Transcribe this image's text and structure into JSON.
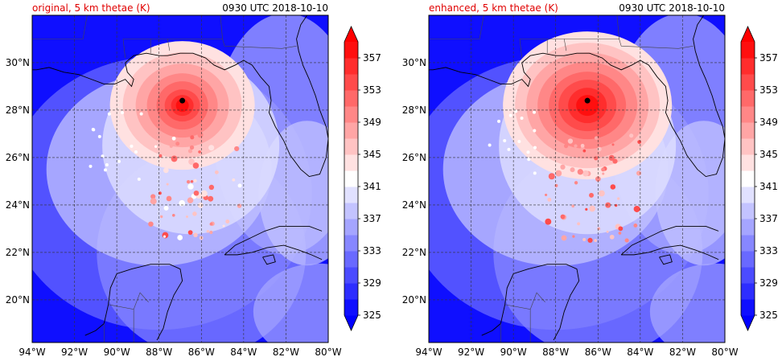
{
  "panels": [
    {
      "id": "original",
      "title_left": "original, 5 km thetae (K)",
      "title_right": "0930 UTC 2018-10-10",
      "storm_center": {
        "lon": -86.9,
        "lat": 28.4
      },
      "enhanced": false
    },
    {
      "id": "enhanced",
      "title_left": "enhanced, 5 km thetae (K)",
      "title_right": "0930 UTC 2018-10-10",
      "storm_center": {
        "lon": -86.5,
        "lat": 28.4
      },
      "enhanced": true
    }
  ],
  "map": {
    "lon_range": [
      -94,
      -80
    ],
    "lat_range": [
      18.2,
      32.0
    ],
    "lon_ticks": [
      -94,
      -92,
      -90,
      -88,
      -86,
      -84,
      -82,
      -80
    ],
    "lon_labels": [
      "94°W",
      "92°W",
      "90°W",
      "88°W",
      "86°W",
      "84°W",
      "82°W",
      "80°W"
    ],
    "lat_ticks": [
      20,
      22,
      24,
      26,
      28,
      30
    ],
    "lat_labels": [
      "20°N",
      "22°N",
      "24°N",
      "26°N",
      "28°N",
      "30°N"
    ],
    "gridlines": "dashed"
  },
  "colorbar": {
    "levels": [
      325,
      327,
      329,
      331,
      333,
      335,
      337,
      339,
      341,
      343,
      345,
      347,
      349,
      351,
      353,
      355,
      357,
      359
    ],
    "tick_values": [
      325,
      329,
      333,
      337,
      341,
      345,
      349,
      353,
      357
    ],
    "tick_labels": [
      "325",
      "329",
      "333",
      "337",
      "341",
      "345",
      "349",
      "353",
      "357"
    ],
    "extend": "both",
    "colormap": "bwr",
    "low_color": "#0000ff",
    "mid_color": "#ffffff",
    "high_color": "#ff0000"
  }
}
